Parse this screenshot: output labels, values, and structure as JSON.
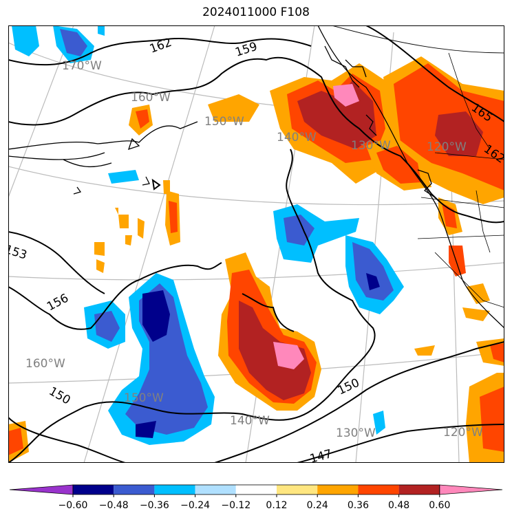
{
  "title": "2024011000 F108",
  "colors": {
    "shading": [
      "#9933cc",
      "#00008b",
      "#3b5bd0",
      "#00bfff",
      "#b0e0ff",
      "#ffffff",
      "#ffe680",
      "#ffa500",
      "#ff4500",
      "#b22222",
      "#ff88bb"
    ],
    "graticule": "#bbbbbb",
    "coast": "#000000",
    "height_contour": "#000000"
  },
  "colorbar": {
    "ticks": [
      "−0.60",
      "−0.48",
      "−0.36",
      "−0.24",
      "−0.12",
      "0.12",
      "0.24",
      "0.36",
      "0.48",
      "0.60"
    ],
    "extend": "both"
  },
  "longitude_labels": [
    "170°W",
    "160°W",
    "150°W",
    "140°W",
    "130°W",
    "120°W",
    "160°W",
    "150°W",
    "140°W",
    "130°W",
    "120°W"
  ],
  "contour_labels": [
    "162",
    "159",
    "165",
    "162",
    "153",
    "156",
    "150",
    "150",
    "147"
  ]
}
